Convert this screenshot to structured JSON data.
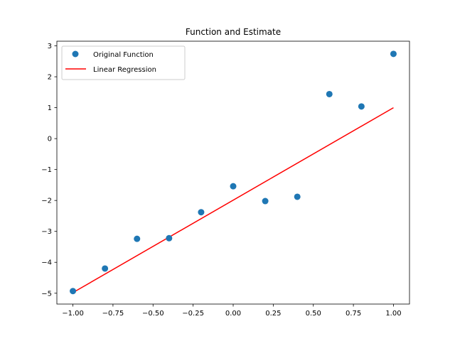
{
  "chart_data": {
    "type": "scatter",
    "title": "Function and Estimate",
    "xlabel": "",
    "ylabel": "",
    "xlim": [
      -1.1,
      1.1
    ],
    "ylim": [
      -5.35,
      3.15
    ],
    "xticks": [
      -1.0,
      -0.75,
      -0.5,
      -0.25,
      0.0,
      0.25,
      0.5,
      0.75,
      1.0
    ],
    "xtick_labels": [
      "−1.00",
      "−0.75",
      "−0.50",
      "−0.25",
      "0.00",
      "0.25",
      "0.50",
      "0.75",
      "1.00"
    ],
    "yticks": [
      -5,
      -4,
      -3,
      -2,
      -1,
      0,
      1,
      2,
      3
    ],
    "ytick_labels": [
      "−5",
      "−4",
      "−3",
      "−2",
      "−1",
      "0",
      "1",
      "2",
      "3"
    ],
    "grid": false,
    "legend_position": "top-left",
    "series": [
      {
        "name": "Original Function",
        "kind": "scatter",
        "color": "#1f77b4",
        "x": [
          -1.0,
          -0.8,
          -0.6,
          -0.4,
          -0.2,
          0.0,
          0.2,
          0.4,
          0.6,
          0.8,
          1.0
        ],
        "y": [
          -4.93,
          -4.2,
          -3.24,
          -3.22,
          -2.38,
          -1.54,
          -2.02,
          -1.88,
          1.44,
          1.04,
          2.74
        ]
      },
      {
        "name": "Linear Regression",
        "kind": "line",
        "color": "#ff0000",
        "x": [
          -1.0,
          1.0
        ],
        "y": [
          -4.98,
          1.0
        ]
      }
    ]
  }
}
